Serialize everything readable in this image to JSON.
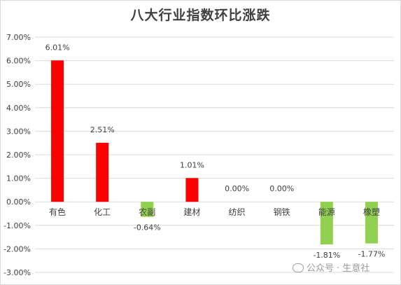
{
  "chart_data": {
    "type": "bar",
    "title": "八大行业指数环比涨跌",
    "categories": [
      "有色",
      "化工",
      "农副",
      "建材",
      "纺织",
      "钢铁",
      "能源",
      "橡塑"
    ],
    "values": [
      6.01,
      2.51,
      -0.64,
      1.01,
      0.0,
      0.0,
      -1.81,
      -1.77
    ],
    "data_labels": [
      "6.01%",
      "2.51%",
      "-0.64%",
      "1.01%",
      "0.00%",
      "0.00%",
      "-1.81%",
      "-1.77%"
    ],
    "ylim": [
      -3,
      7
    ],
    "y_ticks": [
      "7.00%",
      "6.00%",
      "5.00%",
      "4.00%",
      "3.00%",
      "2.00%",
      "1.00%",
      "0.00%",
      "-1.00%",
      "-2.00%",
      "-3.00%"
    ],
    "grid": true,
    "colors": {
      "positive": "#ff0000",
      "negative": "#92d050",
      "grid": "#d9d9d9",
      "text": "#404040"
    }
  },
  "watermark": "公众号 · 生意社"
}
